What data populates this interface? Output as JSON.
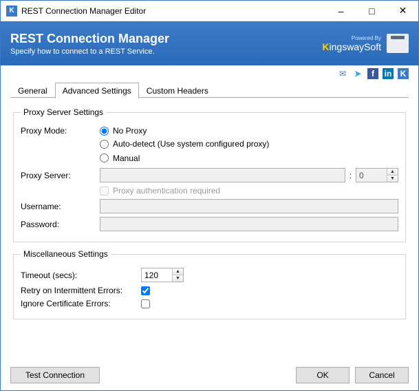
{
  "window": {
    "title": "REST Connection Manager Editor",
    "colors": {
      "accent": "#3a7bc8",
      "banner_gradient_top": "#3b7bc7",
      "banner_gradient_bottom": "#2a6ab8"
    }
  },
  "banner": {
    "heading": "REST Connection Manager",
    "subheading": "Specify how to connect to a REST Service.",
    "powered_by": "Powered By",
    "logo_text_prefix": "K",
    "logo_text_rest": "ingswaySoft"
  },
  "social": {
    "mail": "✉",
    "twitter": "➤",
    "facebook": "f",
    "linkedin": "in",
    "k": "K"
  },
  "tabs": {
    "general": "General",
    "advanced": "Advanced Settings",
    "custom_headers": "Custom Headers",
    "active_index": 1
  },
  "proxy": {
    "legend": "Proxy Server Settings",
    "mode_label": "Proxy Mode:",
    "options": {
      "no_proxy": "No Proxy",
      "auto_detect": "Auto-detect (Use system configured proxy)",
      "manual": "Manual"
    },
    "selected": "no_proxy",
    "server_label": "Proxy Server:",
    "server_value": "",
    "port_value": "0",
    "port_sep": ":",
    "auth_required_label": "Proxy authentication required",
    "auth_required_checked": false,
    "username_label": "Username:",
    "username_value": "",
    "password_label": "Password:",
    "password_value": ""
  },
  "misc": {
    "legend": "Miscellaneous Settings",
    "timeout_label": "Timeout (secs):",
    "timeout_value": "120",
    "retry_label": "Retry on Intermittent Errors:",
    "retry_checked": true,
    "ignore_cert_label": "Ignore Certificate Errors:",
    "ignore_cert_checked": false
  },
  "footer": {
    "test": "Test Connection",
    "ok": "OK",
    "cancel": "Cancel"
  }
}
